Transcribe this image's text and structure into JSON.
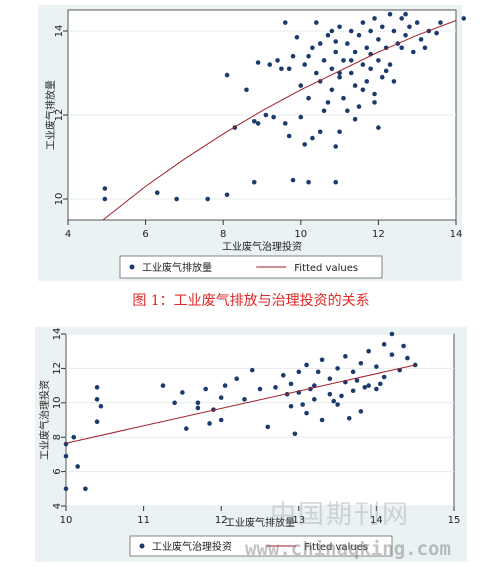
{
  "colors": {
    "panel_bg": "#eaf2f3",
    "plot_bg": "#ffffff",
    "marker": "#1a3b6b",
    "fit_line": "#a01e2a",
    "caption": "#e02828"
  },
  "caption": "图 1：工业废气排放与治理投资的关系",
  "watermark": {
    "logo_text": "中国期刊网",
    "url": "www.chinaqking.com"
  },
  "chart_data": [
    {
      "type": "scatter",
      "title": "",
      "xlabel": "工业废气治理投资",
      "ylabel": "工业废气排放量",
      "xlim": [
        4,
        14
      ],
      "ylim": [
        9.5,
        14.5
      ],
      "xticks": [
        4,
        6,
        8,
        10,
        12,
        14
      ],
      "yticks": [
        10,
        12,
        14
      ],
      "grid": "horizontal",
      "legend": {
        "placement": "bottom",
        "entries": [
          "工业废气排放量",
          "Fitted values"
        ]
      },
      "series": [
        {
          "name": "工业废气排放量",
          "kind": "scatter",
          "points": [
            [
              4.95,
              10.25
            ],
            [
              4.95,
              10.0
            ],
            [
              6.3,
              10.15
            ],
            [
              6.8,
              10.0
            ],
            [
              7.6,
              10.0
            ],
            [
              8.1,
              10.1
            ],
            [
              8.8,
              10.4
            ],
            [
              9.8,
              10.45
            ],
            [
              10.2,
              10.4
            ],
            [
              10.9,
              10.4
            ],
            [
              8.1,
              12.95
            ],
            [
              8.3,
              11.7
            ],
            [
              8.8,
              11.85
            ],
            [
              8.9,
              11.8
            ],
            [
              9.1,
              12.0
            ],
            [
              9.3,
              11.95
            ],
            [
              9.6,
              11.8
            ],
            [
              9.7,
              11.5
            ],
            [
              10.0,
              11.95
            ],
            [
              10.1,
              11.3
            ],
            [
              10.3,
              11.45
            ],
            [
              10.5,
              11.6
            ],
            [
              10.9,
              11.25
            ],
            [
              11.0,
              11.6
            ],
            [
              8.6,
              12.6
            ],
            [
              8.9,
              13.25
            ],
            [
              9.2,
              13.2
            ],
            [
              9.4,
              13.3
            ],
            [
              9.6,
              14.2
            ],
            [
              9.7,
              13.1
            ],
            [
              9.8,
              13.4
            ],
            [
              9.9,
              13.85
            ],
            [
              10.0,
              12.7
            ],
            [
              10.1,
              13.2
            ],
            [
              10.2,
              12.4
            ],
            [
              10.3,
              13.6
            ],
            [
              10.4,
              13.0
            ],
            [
              10.4,
              14.2
            ],
            [
              10.5,
              12.8
            ],
            [
              10.6,
              13.3
            ],
            [
              10.7,
              12.3
            ],
            [
              10.7,
              13.9
            ],
            [
              10.8,
              13.1
            ],
            [
              10.8,
              12.6
            ],
            [
              10.9,
              13.5
            ],
            [
              11.0,
              12.9
            ],
            [
              11.0,
              14.1
            ],
            [
              11.1,
              13.3
            ],
            [
              11.1,
              12.4
            ],
            [
              11.2,
              13.7
            ],
            [
              11.2,
              12.1
            ],
            [
              11.3,
              13.0
            ],
            [
              11.3,
              14.0
            ],
            [
              11.4,
              13.5
            ],
            [
              11.4,
              12.7
            ],
            [
              11.5,
              12.2
            ],
            [
              11.5,
              13.9
            ],
            [
              11.6,
              13.2
            ],
            [
              11.6,
              14.2
            ],
            [
              11.7,
              12.8
            ],
            [
              11.7,
              13.6
            ],
            [
              11.8,
              14.0
            ],
            [
              11.8,
              13.1
            ],
            [
              11.9,
              14.3
            ],
            [
              11.9,
              12.5
            ],
            [
              12.0,
              13.8
            ],
            [
              12.0,
              13.3
            ],
            [
              12.1,
              14.1
            ],
            [
              12.1,
              12.9
            ],
            [
              12.2,
              13.6
            ],
            [
              12.3,
              14.4
            ],
            [
              12.3,
              13.2
            ],
            [
              12.4,
              14.0
            ],
            [
              12.5,
              13.7
            ],
            [
              12.6,
              14.3
            ],
            [
              12.7,
              13.9
            ],
            [
              12.8,
              14.1
            ],
            [
              12.9,
              13.5
            ],
            [
              13.0,
              14.2
            ],
            [
              13.1,
              13.8
            ],
            [
              13.3,
              14.0
            ],
            [
              13.5,
              13.95
            ],
            [
              13.6,
              14.2
            ],
            [
              14.2,
              14.3
            ],
            [
              10.5,
              13.7
            ],
            [
              10.9,
              13.75
            ],
            [
              11.3,
              13.3
            ],
            [
              11.8,
              13.45
            ],
            [
              12.2,
              13.05
            ],
            [
              12.6,
              13.6
            ],
            [
              10.2,
              13.4
            ],
            [
              9.5,
              13.1
            ],
            [
              11.6,
              12.6
            ],
            [
              11.0,
              13.0
            ],
            [
              12.4,
              12.8
            ],
            [
              11.9,
              12.3
            ],
            [
              10.6,
              12.1
            ],
            [
              11.4,
              11.9
            ],
            [
              12.0,
              11.7
            ],
            [
              10.8,
              14.0
            ],
            [
              12.7,
              14.4
            ],
            [
              13.2,
              13.6
            ]
          ]
        },
        {
          "name": "Fitted values",
          "kind": "line",
          "points": [
            [
              4.9,
              9.5
            ],
            [
              6.0,
              10.3
            ],
            [
              7.0,
              10.95
            ],
            [
              8.0,
              11.55
            ],
            [
              9.0,
              12.1
            ],
            [
              10.0,
              12.6
            ],
            [
              11.0,
              13.05
            ],
            [
              12.0,
              13.5
            ],
            [
              13.0,
              13.9
            ],
            [
              14.0,
              14.25
            ]
          ]
        }
      ]
    },
    {
      "type": "scatter",
      "title": "",
      "xlabel": "工业废气排放量",
      "ylabel": "工业废气治理投资",
      "xlim": [
        10,
        15
      ],
      "ylim": [
        4,
        14
      ],
      "xticks": [
        10,
        11,
        12,
        13,
        14,
        15
      ],
      "yticks": [
        4,
        6,
        8,
        10,
        12,
        14
      ],
      "grid": "horizontal",
      "legend": {
        "placement": "bottom",
        "entries": [
          "工业废气治理投资",
          "Fitted values"
        ]
      },
      "series": [
        {
          "name": "工业废气治理投资",
          "kind": "scatter",
          "points": [
            [
              10.0,
              7.6
            ],
            [
              10.0,
              6.9
            ],
            [
              10.0,
              5.0
            ],
            [
              10.1,
              8.0
            ],
            [
              10.15,
              6.3
            ],
            [
              10.25,
              5.0
            ],
            [
              10.4,
              10.9
            ],
            [
              10.4,
              10.2
            ],
            [
              10.45,
              9.8
            ],
            [
              10.4,
              8.9
            ],
            [
              11.25,
              11.0
            ],
            [
              11.4,
              10.0
            ],
            [
              11.5,
              10.6
            ],
            [
              11.55,
              8.5
            ],
            [
              11.7,
              9.7
            ],
            [
              11.7,
              10.0
            ],
            [
              11.8,
              10.8
            ],
            [
              11.9,
              9.6
            ],
            [
              11.85,
              8.8
            ],
            [
              12.0,
              9.0
            ],
            [
              12.0,
              10.3
            ],
            [
              12.05,
              11.0
            ],
            [
              12.2,
              11.4
            ],
            [
              12.3,
              10.2
            ],
            [
              12.4,
              11.9
            ],
            [
              12.5,
              10.8
            ],
            [
              12.6,
              8.6
            ],
            [
              12.7,
              10.9
            ],
            [
              12.8,
              11.6
            ],
            [
              12.9,
              9.8
            ],
            [
              12.95,
              8.2
            ],
            [
              13.0,
              11.8
            ],
            [
              13.0,
              10.6
            ],
            [
              13.1,
              12.2
            ],
            [
              13.1,
              9.4
            ],
            [
              13.2,
              11.0
            ],
            [
              13.2,
              10.2
            ],
            [
              13.3,
              12.5
            ],
            [
              13.3,
              9.0
            ],
            [
              13.4,
              11.4
            ],
            [
              13.4,
              10.5
            ],
            [
              13.5,
              12.0
            ],
            [
              13.5,
              9.9
            ],
            [
              13.6,
              11.2
            ],
            [
              13.6,
              12.7
            ],
            [
              13.7,
              10.7
            ],
            [
              13.7,
              11.8
            ],
            [
              13.8,
              9.5
            ],
            [
              13.8,
              12.3
            ],
            [
              13.9,
              11.0
            ],
            [
              13.9,
              13.0
            ],
            [
              14.0,
              10.8
            ],
            [
              14.0,
              12.1
            ],
            [
              14.1,
              11.5
            ],
            [
              14.1,
              13.4
            ],
            [
              14.2,
              12.8
            ],
            [
              14.3,
              11.9
            ],
            [
              14.4,
              12.6
            ],
            [
              14.5,
              12.2
            ],
            [
              14.2,
              14.0
            ],
            [
              14.35,
              13.3
            ],
            [
              12.9,
              11.1
            ],
            [
              13.15,
              10.8
            ],
            [
              13.45,
              10.1
            ],
            [
              13.75,
              11.3
            ],
            [
              13.25,
              11.8
            ],
            [
              13.55,
              10.4
            ],
            [
              13.85,
              10.9
            ],
            [
              14.05,
              11.1
            ],
            [
              13.05,
              9.9
            ],
            [
              12.85,
              10.5
            ],
            [
              13.65,
              9.1
            ]
          ]
        },
        {
          "name": "Fitted values",
          "kind": "line",
          "points": [
            [
              10.0,
              7.65
            ],
            [
              14.5,
              12.2
            ]
          ]
        }
      ]
    }
  ]
}
